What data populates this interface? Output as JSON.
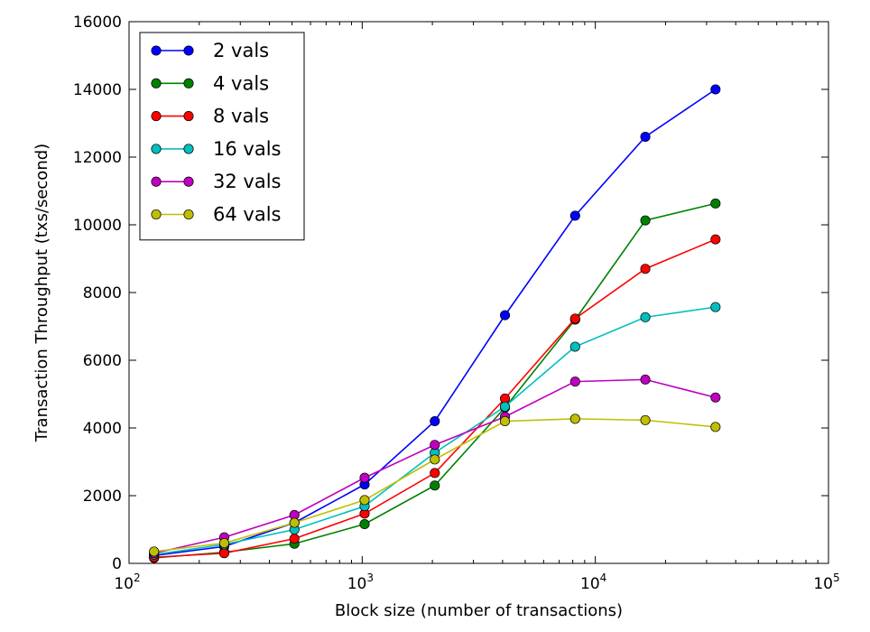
{
  "chart_data": {
    "type": "line",
    "title": "",
    "xlabel": "Block size (number of transactions)",
    "ylabel": "Transaction Throughput (txs/second)",
    "xscale": "log",
    "xlim": [
      100,
      100000
    ],
    "ylim": [
      0,
      16000
    ],
    "x_ticks": [
      {
        "value": 100,
        "base": "10",
        "exp": "2"
      },
      {
        "value": 1000,
        "base": "10",
        "exp": "3"
      },
      {
        "value": 10000,
        "base": "10",
        "exp": "4"
      },
      {
        "value": 100000,
        "base": "10",
        "exp": "5"
      }
    ],
    "y_ticks": [
      {
        "value": 0,
        "label": "0"
      },
      {
        "value": 2000,
        "label": "2000"
      },
      {
        "value": 4000,
        "label": "4000"
      },
      {
        "value": 6000,
        "label": "6000"
      },
      {
        "value": 8000,
        "label": "8000"
      },
      {
        "value": 10000,
        "label": "10000"
      },
      {
        "value": 12000,
        "label": "12000"
      },
      {
        "value": 14000,
        "label": "14000"
      },
      {
        "value": 16000,
        "label": "16000"
      }
    ],
    "x": [
      128,
      256,
      512,
      1024,
      2048,
      4096,
      8192,
      16384,
      32768
    ],
    "legend_position": "upper-left",
    "series": [
      {
        "name": "2 vals",
        "color": "#0000ff",
        "values": [
          230,
          500,
          1200,
          2330,
          4200,
          7330,
          10270,
          12600,
          14000
        ]
      },
      {
        "name": "4 vals",
        "color": "#008000",
        "values": [
          160,
          330,
          580,
          1160,
          2300,
          4600,
          7200,
          10130,
          10630
        ]
      },
      {
        "name": "8 vals",
        "color": "#ff0000",
        "values": [
          180,
          300,
          730,
          1470,
          2670,
          4870,
          7230,
          8700,
          9570
        ]
      },
      {
        "name": "16 vals",
        "color": "#00bfbf",
        "values": [
          260,
          560,
          1000,
          1690,
          3270,
          4630,
          6400,
          7270,
          7570
        ]
      },
      {
        "name": "32 vals",
        "color": "#bf00bf",
        "values": [
          300,
          770,
          1430,
          2530,
          3500,
          4330,
          5370,
          5430,
          4900
        ]
      },
      {
        "name": "64 vals",
        "color": "#bfbf00",
        "values": [
          350,
          600,
          1200,
          1870,
          3070,
          4200,
          4270,
          4230,
          4030
        ]
      }
    ]
  }
}
